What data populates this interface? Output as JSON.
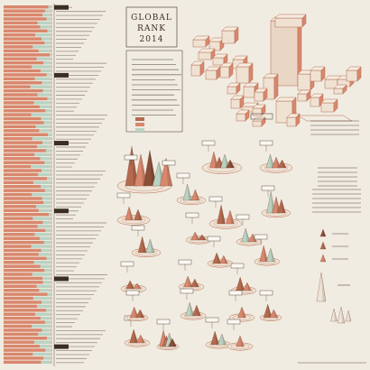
{
  "header": {
    "title_line1": "GLOBAL",
    "title_line2": "RANK",
    "year": "2014"
  },
  "colors": {
    "background": "#f1ece2",
    "salmon": "#d9876d",
    "terracotta": "#b46a4e",
    "brown": "#8a4f38",
    "mint": "#b9d3c3",
    "ink": "#3b2e24",
    "grey": "#cfc6b8"
  },
  "legend": {
    "entries": [
      "",
      "",
      ""
    ],
    "swatch_colors": [
      "#b46a4e",
      "#d9876d",
      "#b9d3c3"
    ]
  },
  "symbol_legend": {
    "colors": [
      "#8a4f38",
      "#b46a4e",
      "#d9876d"
    ]
  },
  "chart_data": {
    "type": "bar",
    "orientation": "horizontal-stacked",
    "categories_count": 90,
    "segment_colors": [
      "#d9876d",
      "#b9d3c3",
      "#cfc6b8"
    ],
    "values": [
      [
        0.92,
        0.05,
        0.03
      ],
      [
        0.85,
        0.1,
        0.05
      ],
      [
        0.8,
        0.12,
        0.08
      ],
      [
        0.88,
        0.07,
        0.05
      ],
      [
        0.7,
        0.25,
        0.05
      ],
      [
        0.75,
        0.18,
        0.07
      ],
      [
        0.9,
        0.06,
        0.04
      ],
      [
        0.65,
        0.3,
        0.05
      ],
      [
        0.78,
        0.15,
        0.07
      ],
      [
        0.84,
        0.1,
        0.06
      ],
      [
        0.6,
        0.35,
        0.05
      ],
      [
        0.72,
        0.2,
        0.08
      ],
      [
        0.95,
        0.03,
        0.02
      ],
      [
        0.68,
        0.27,
        0.05
      ],
      [
        0.82,
        0.12,
        0.06
      ],
      [
        0.58,
        0.37,
        0.05
      ],
      [
        0.76,
        0.19,
        0.05
      ],
      [
        0.88,
        0.08,
        0.04
      ],
      [
        0.64,
        0.3,
        0.06
      ],
      [
        0.79,
        0.16,
        0.05
      ],
      [
        0.55,
        0.4,
        0.05
      ],
      [
        0.81,
        0.13,
        0.06
      ],
      [
        0.7,
        0.24,
        0.06
      ],
      [
        0.9,
        0.07,
        0.03
      ],
      [
        0.62,
        0.32,
        0.06
      ],
      [
        0.74,
        0.2,
        0.06
      ],
      [
        0.86,
        0.1,
        0.04
      ],
      [
        0.57,
        0.38,
        0.05
      ],
      [
        0.77,
        0.17,
        0.06
      ],
      [
        0.83,
        0.12,
        0.05
      ],
      [
        0.66,
        0.28,
        0.06
      ],
      [
        0.73,
        0.21,
        0.06
      ],
      [
        0.91,
        0.06,
        0.03
      ],
      [
        0.59,
        0.36,
        0.05
      ],
      [
        0.8,
        0.14,
        0.06
      ],
      [
        0.69,
        0.26,
        0.05
      ],
      [
        0.87,
        0.09,
        0.04
      ],
      [
        0.63,
        0.31,
        0.06
      ],
      [
        0.75,
        0.19,
        0.06
      ],
      [
        0.84,
        0.11,
        0.05
      ],
      [
        0.56,
        0.39,
        0.05
      ],
      [
        0.78,
        0.16,
        0.06
      ],
      [
        0.71,
        0.23,
        0.06
      ],
      [
        0.89,
        0.08,
        0.03
      ],
      [
        0.61,
        0.33,
        0.06
      ],
      [
        0.76,
        0.18,
        0.06
      ],
      [
        0.85,
        0.1,
        0.05
      ],
      [
        0.58,
        0.37,
        0.05
      ],
      [
        0.79,
        0.15,
        0.06
      ],
      [
        0.82,
        0.13,
        0.05
      ],
      [
        0.67,
        0.28,
        0.05
      ],
      [
        0.72,
        0.22,
        0.06
      ],
      [
        0.93,
        0.05,
        0.02
      ],
      [
        0.6,
        0.34,
        0.06
      ],
      [
        0.81,
        0.14,
        0.05
      ],
      [
        0.7,
        0.25,
        0.05
      ],
      [
        0.86,
        0.09,
        0.05
      ],
      [
        0.64,
        0.3,
        0.06
      ],
      [
        0.74,
        0.2,
        0.06
      ],
      [
        0.83,
        0.12,
        0.05
      ],
      [
        0.57,
        0.38,
        0.05
      ],
      [
        0.77,
        0.17,
        0.06
      ],
      [
        0.72,
        0.22,
        0.06
      ],
      [
        0.88,
        0.08,
        0.04
      ],
      [
        0.62,
        0.32,
        0.06
      ],
      [
        0.75,
        0.19,
        0.06
      ],
      [
        0.84,
        0.11,
        0.05
      ],
      [
        0.59,
        0.36,
        0.05
      ],
      [
        0.8,
        0.14,
        0.06
      ],
      [
        0.81,
        0.14,
        0.05
      ],
      [
        0.68,
        0.26,
        0.06
      ],
      [
        0.73,
        0.21,
        0.06
      ],
      [
        0.9,
        0.07,
        0.03
      ],
      [
        0.61,
        0.33,
        0.06
      ],
      [
        0.78,
        0.16,
        0.06
      ],
      [
        0.69,
        0.25,
        0.06
      ],
      [
        0.87,
        0.09,
        0.04
      ],
      [
        0.65,
        0.29,
        0.06
      ],
      [
        0.76,
        0.18,
        0.06
      ],
      [
        0.85,
        0.1,
        0.05
      ],
      [
        0.58,
        0.37,
        0.05
      ],
      [
        0.79,
        0.15,
        0.06
      ],
      [
        0.71,
        0.23,
        0.06
      ],
      [
        0.89,
        0.07,
        0.04
      ],
      [
        0.63,
        0.31,
        0.06
      ],
      [
        0.74,
        0.2,
        0.06
      ],
      [
        0.86,
        0.1,
        0.04
      ],
      [
        0.6,
        0.35,
        0.05
      ],
      [
        0.82,
        0.13,
        0.05
      ],
      [
        0.77,
        0.17,
        0.06
      ]
    ]
  },
  "regional_summary": [
    {
      "height": 1.0,
      "color": "#b46a4e"
    },
    {
      "height": 0.8,
      "color": "#d9876d"
    },
    {
      "height": 0.6,
      "color": "#8a4f38"
    }
  ],
  "cone_clusters": [
    {
      "count": 5,
      "heights": [
        1.0,
        0.8,
        0.9,
        0.6,
        0.7
      ],
      "colors": [
        "#b46a4e",
        "#d9876d",
        "#8a4f38",
        "#b9d3c3",
        "#d9876d"
      ]
    },
    {
      "count": 4,
      "heights": [
        0.6,
        0.4,
        0.5,
        0.3
      ],
      "colors": [
        "#d9876d",
        "#b46a4e",
        "#b9d3c3",
        "#8a4f38"
      ]
    },
    {
      "count": 3,
      "heights": [
        0.5,
        0.4,
        0.3
      ],
      "colors": [
        "#b9d3c3",
        "#d9876d",
        "#b46a4e"
      ]
    },
    {
      "count": 2,
      "heights": [
        0.6,
        0.4
      ],
      "colors": [
        "#b9d3c3",
        "#d9876d"
      ]
    },
    {
      "count": 2,
      "heights": [
        0.7,
        0.5
      ],
      "colors": [
        "#b46a4e",
        "#d9876d"
      ]
    },
    {
      "count": 3,
      "heights": [
        0.8,
        0.6,
        0.5
      ],
      "colors": [
        "#b9d3c3",
        "#d9876d",
        "#b46a4e"
      ]
    },
    {
      "count": 2,
      "heights": [
        0.5,
        0.4
      ],
      "colors": [
        "#d9876d",
        "#b46a4e"
      ]
    },
    {
      "count": 2,
      "heights": [
        0.6,
        0.5
      ],
      "colors": [
        "#b46a4e",
        "#b9d3c3"
      ]
    },
    {
      "count": 2,
      "heights": [
        0.5,
        0.3
      ],
      "colors": [
        "#b9d3c3",
        "#d9876d"
      ]
    },
    {
      "count": 2,
      "heights": [
        0.3,
        0.2
      ],
      "colors": [
        "#d9876d",
        "#b46a4e"
      ]
    },
    {
      "count": 2,
      "heights": [
        0.4,
        0.3
      ],
      "colors": [
        "#b46a4e",
        "#d9876d"
      ]
    },
    {
      "count": 2,
      "heights": [
        0.6,
        0.5
      ],
      "colors": [
        "#d9876d",
        "#b9d3c3"
      ]
    },
    {
      "count": 2,
      "heights": [
        0.3,
        0.2
      ],
      "colors": [
        "#b46a4e",
        "#d9876d"
      ]
    },
    {
      "count": 2,
      "heights": [
        0.4,
        0.3
      ],
      "colors": [
        "#d9876d",
        "#b46a4e"
      ]
    },
    {
      "count": 2,
      "heights": [
        0.5,
        0.3
      ],
      "colors": [
        "#b46a4e",
        "#d9876d"
      ]
    },
    {
      "count": 2,
      "heights": [
        0.5,
        0.4
      ],
      "colors": [
        "#b9d3c3",
        "#b46a4e"
      ]
    },
    {
      "count": 1,
      "heights": [
        0.4
      ],
      "colors": [
        "#d9876d"
      ]
    },
    {
      "count": 2,
      "heights": [
        0.5,
        0.3
      ],
      "colors": [
        "#b46a4e",
        "#d9876d"
      ]
    },
    {
      "count": 2,
      "heights": [
        0.4,
        0.3
      ],
      "colors": [
        "#d9876d",
        "#b46a4e"
      ]
    },
    {
      "count": 2,
      "heights": [
        0.5,
        0.4
      ],
      "colors": [
        "#b46a4e",
        "#b9d3c3"
      ]
    },
    {
      "count": 1,
      "heights": [
        0.4
      ],
      "colors": [
        "#d9876d"
      ]
    },
    {
      "count": 2,
      "heights": [
        0.5,
        0.3
      ],
      "colors": [
        "#b46a4e",
        "#d9876d"
      ]
    }
  ]
}
